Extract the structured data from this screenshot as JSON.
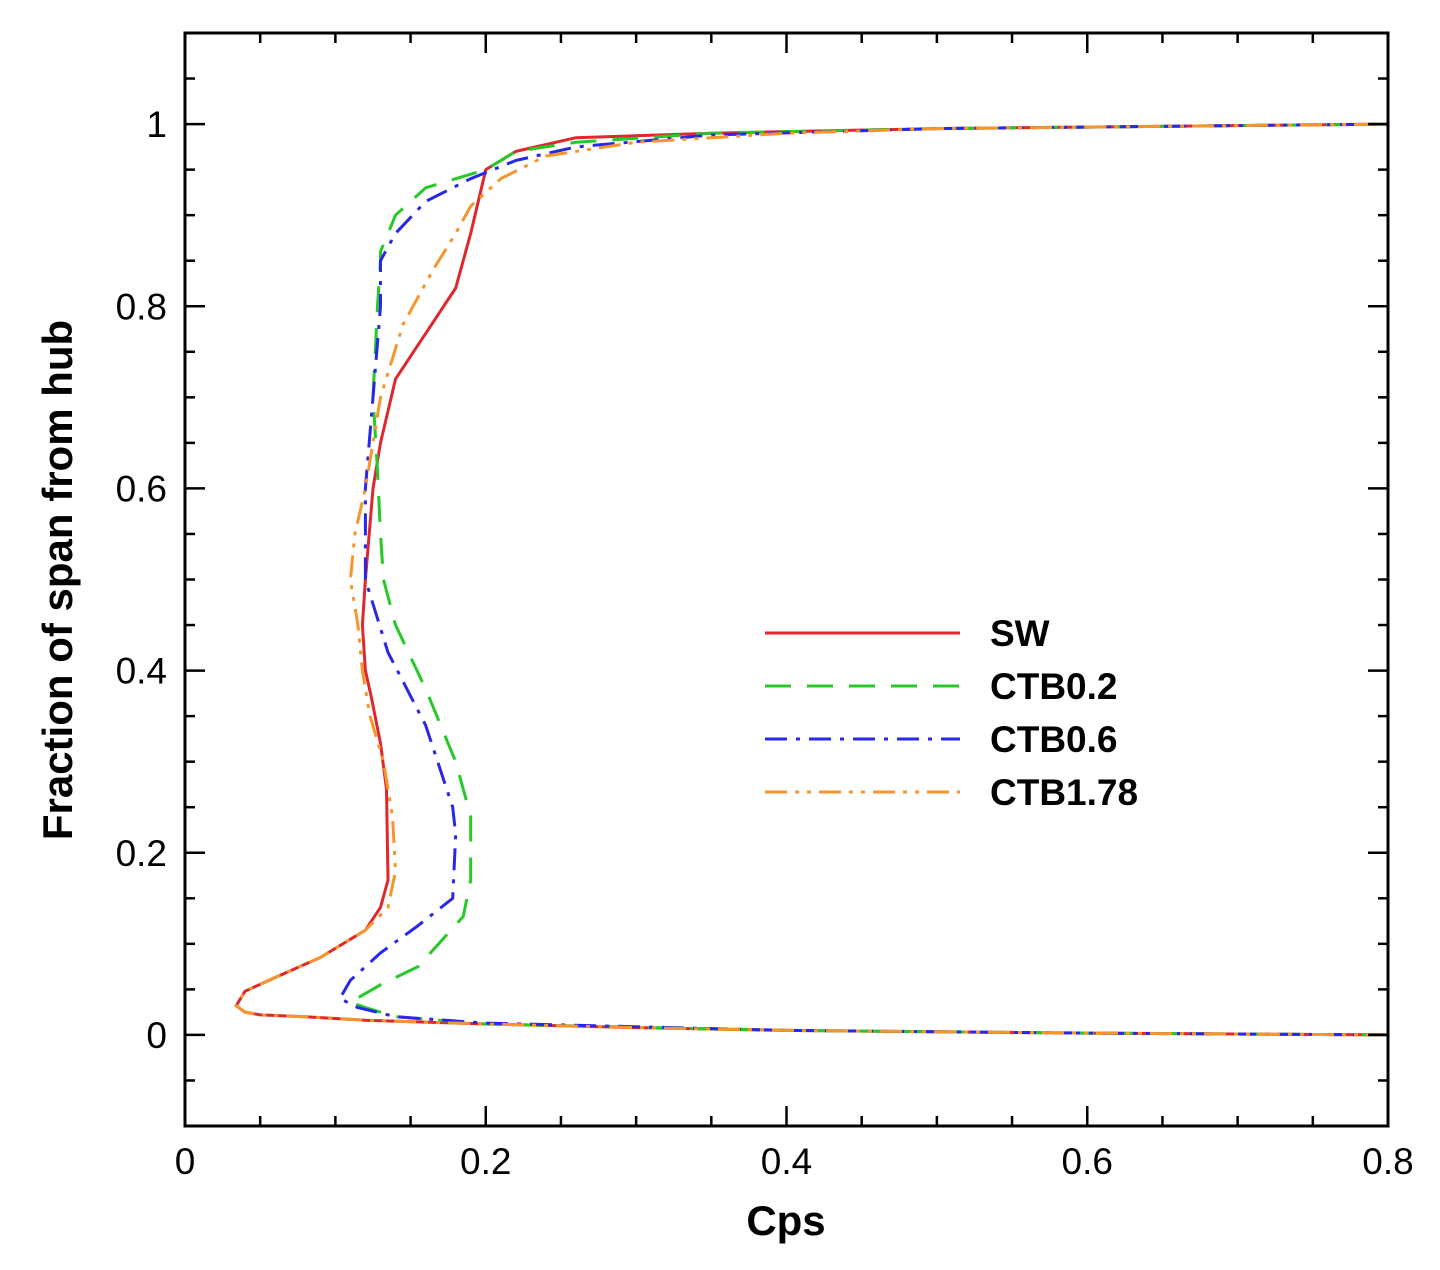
{
  "chart_data": {
    "type": "line",
    "title": "",
    "xlabel": "Cps",
    "ylabel": "Fraction of span from hub",
    "xlim": [
      0,
      0.8
    ],
    "ylim": [
      -0.1,
      1.1
    ],
    "xticks": [
      {
        "value": 0,
        "label": "0"
      },
      {
        "value": 0.2,
        "label": "0.2"
      },
      {
        "value": 0.4,
        "label": "0.4"
      },
      {
        "value": 0.6,
        "label": "0.6"
      },
      {
        "value": 0.8,
        "label": "0.8"
      }
    ],
    "yticks": [
      {
        "value": 0,
        "label": "0"
      },
      {
        "value": 0.2,
        "label": "0.2"
      },
      {
        "value": 0.4,
        "label": "0.4"
      },
      {
        "value": 0.6,
        "label": "0.6"
      },
      {
        "value": 0.8,
        "label": "0.8"
      },
      {
        "value": 1,
        "label": "1"
      }
    ],
    "x_minor_step": 0.05,
    "y_minor_step": 0.05,
    "grid": false,
    "legend_position": "center-right",
    "series": [
      {
        "name": "SW",
        "color": "#e0282c",
        "dash": "solid",
        "x": [
          0.8,
          0.6,
          0.4,
          0.3,
          0.2,
          0.12,
          0.08,
          0.05,
          0.04,
          0.034,
          0.04,
          0.06,
          0.09,
          0.12,
          0.13,
          0.135,
          0.134,
          0.13,
          0.124,
          0.12,
          0.118,
          0.12,
          0.125,
          0.13,
          0.14,
          0.16,
          0.18,
          0.185,
          0.19,
          0.2,
          0.22,
          0.26,
          0.35,
          0.5,
          0.8
        ],
        "y": [
          0.0,
          0.002,
          0.005,
          0.008,
          0.012,
          0.016,
          0.02,
          0.022,
          0.025,
          0.032,
          0.048,
          0.063,
          0.085,
          0.115,
          0.14,
          0.17,
          0.27,
          0.32,
          0.37,
          0.4,
          0.45,
          0.5,
          0.6,
          0.65,
          0.72,
          0.77,
          0.82,
          0.85,
          0.88,
          0.95,
          0.97,
          0.985,
          0.99,
          0.995,
          1.0
        ]
      },
      {
        "name": "CTB0.2",
        "color": "#28c828",
        "dash": "dashed",
        "x": [
          0.8,
          0.6,
          0.4,
          0.2,
          0.14,
          0.12,
          0.11,
          0.13,
          0.155,
          0.185,
          0.19,
          0.19,
          0.18,
          0.16,
          0.14,
          0.132,
          0.13,
          0.128,
          0.125,
          0.128,
          0.13,
          0.13,
          0.14,
          0.16,
          0.18,
          0.2,
          0.22,
          0.26,
          0.35,
          0.5,
          0.8
        ],
        "y": [
          0.0,
          0.002,
          0.005,
          0.012,
          0.02,
          0.03,
          0.036,
          0.055,
          0.075,
          0.13,
          0.17,
          0.24,
          0.3,
          0.38,
          0.45,
          0.5,
          0.55,
          0.62,
          0.7,
          0.8,
          0.85,
          0.86,
          0.9,
          0.93,
          0.94,
          0.95,
          0.97,
          0.98,
          0.99,
          0.995,
          1.0
        ]
      },
      {
        "name": "CTB0.6",
        "color": "#2828e6",
        "dash": "dashdot",
        "x": [
          0.8,
          0.6,
          0.4,
          0.2,
          0.14,
          0.115,
          0.103,
          0.11,
          0.13,
          0.155,
          0.178,
          0.18,
          0.178,
          0.16,
          0.135,
          0.12,
          0.12,
          0.125,
          0.13,
          0.13,
          0.14,
          0.16,
          0.19,
          0.22,
          0.26,
          0.35,
          0.5,
          0.8
        ],
        "y": [
          0.0,
          0.002,
          0.005,
          0.013,
          0.02,
          0.03,
          0.04,
          0.06,
          0.09,
          0.12,
          0.15,
          0.22,
          0.25,
          0.34,
          0.42,
          0.5,
          0.6,
          0.7,
          0.8,
          0.85,
          0.88,
          0.915,
          0.94,
          0.96,
          0.975,
          0.988,
          0.995,
          1.0
        ]
      },
      {
        "name": "CTB1.78",
        "color": "#f5962c",
        "dash": "dashdotdot",
        "x": [
          0.8,
          0.6,
          0.4,
          0.3,
          0.2,
          0.12,
          0.08,
          0.05,
          0.04,
          0.034,
          0.04,
          0.06,
          0.09,
          0.12,
          0.135,
          0.14,
          0.138,
          0.132,
          0.123,
          0.118,
          0.115,
          0.11,
          0.113,
          0.12,
          0.13,
          0.145,
          0.165,
          0.18,
          0.19,
          0.21,
          0.24,
          0.3,
          0.4,
          0.5,
          0.8
        ],
        "y": [
          0.0,
          0.002,
          0.005,
          0.008,
          0.012,
          0.016,
          0.02,
          0.022,
          0.025,
          0.032,
          0.048,
          0.063,
          0.085,
          0.115,
          0.14,
          0.18,
          0.24,
          0.3,
          0.35,
          0.4,
          0.45,
          0.5,
          0.55,
          0.6,
          0.7,
          0.78,
          0.84,
          0.88,
          0.91,
          0.94,
          0.965,
          0.98,
          0.99,
          0.995,
          1.0
        ]
      }
    ]
  }
}
